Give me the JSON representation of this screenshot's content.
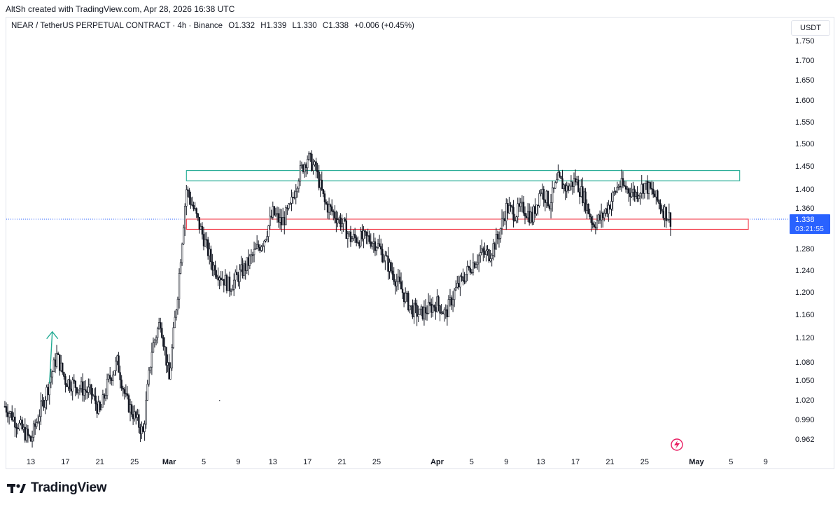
{
  "header": {
    "credit": "AltSh created with TradingView.com, Apr 28, 2026 16:38 UTC",
    "symbol": "NEAR / TetherUS PERPETUAL CONTRACT · 4h · Binance",
    "open": "O1.332",
    "high": "H1.339",
    "low": "L1.330",
    "close": "C1.338",
    "change": "+0.006 (+0.45%)",
    "currency": "USDT"
  },
  "footer": {
    "brand": "TradingView",
    "logo_icon": "tradingview-logo-icon"
  },
  "colors": {
    "candle": "#131722",
    "resistance": "#22ab94",
    "support": "#f23645",
    "price_tag": "#2962ff"
  },
  "chart_data": {
    "type": "candlestick",
    "title": "",
    "xlabel": "",
    "ylabel": "",
    "y_axis_ticks": [
      "1.750",
      "1.700",
      "1.650",
      "1.600",
      "1.550",
      "1.500",
      "1.450",
      "1.400",
      "1.360",
      "1.320",
      "1.280",
      "1.240",
      "1.200",
      "1.160",
      "1.120",
      "1.080",
      "1.050",
      "1.020",
      "0.990",
      "0.962"
    ],
    "x_axis_ticks": [
      {
        "label": "13",
        "bold": false
      },
      {
        "label": "17",
        "bold": false
      },
      {
        "label": "21",
        "bold": false
      },
      {
        "label": "25",
        "bold": false
      },
      {
        "label": "Mar",
        "bold": true
      },
      {
        "label": "5",
        "bold": false
      },
      {
        "label": "9",
        "bold": false
      },
      {
        "label": "13",
        "bold": false
      },
      {
        "label": "17",
        "bold": false
      },
      {
        "label": "21",
        "bold": false
      },
      {
        "label": "25",
        "bold": false
      },
      {
        "label": "Apr",
        "bold": true
      },
      {
        "label": "5",
        "bold": false
      },
      {
        "label": "9",
        "bold": false
      },
      {
        "label": "13",
        "bold": false
      },
      {
        "label": "17",
        "bold": false
      },
      {
        "label": "21",
        "bold": false
      },
      {
        "label": "25",
        "bold": false
      },
      {
        "label": "May",
        "bold": true
      },
      {
        "label": "5",
        "bold": false
      },
      {
        "label": "9",
        "bold": false
      }
    ],
    "last_price": "1.338",
    "countdown": "03:21:55",
    "zones": [
      {
        "type": "resistance",
        "low": 1.418,
        "high": 1.44,
        "from": "Mar 3",
        "to": "May 6"
      },
      {
        "type": "support",
        "low": 1.318,
        "high": 1.338,
        "from": "Mar 3",
        "to": "May 7"
      }
    ],
    "price_path": [
      {
        "date": "Feb 10",
        "price": 1.01
      },
      {
        "date": "Feb 12",
        "price": 0.975
      },
      {
        "date": "Feb 13",
        "price": 0.96
      },
      {
        "date": "Feb 15",
        "price": 1.04
      },
      {
        "date": "Feb 16",
        "price": 1.09
      },
      {
        "date": "Feb 17",
        "price": 1.05
      },
      {
        "date": "Feb 20",
        "price": 1.03
      },
      {
        "date": "Feb 21",
        "price": 1.0
      },
      {
        "date": "Feb 22",
        "price": 1.05
      },
      {
        "date": "Feb 23",
        "price": 1.08
      },
      {
        "date": "Feb 24",
        "price": 1.02
      },
      {
        "date": "Feb 26",
        "price": 0.97
      },
      {
        "date": "Feb 27",
        "price": 1.1
      },
      {
        "date": "Feb 28",
        "price": 1.15
      },
      {
        "date": "Mar 1",
        "price": 1.05
      },
      {
        "date": "Mar 2",
        "price": 1.2
      },
      {
        "date": "Mar 3",
        "price": 1.4
      },
      {
        "date": "Mar 4",
        "price": 1.35
      },
      {
        "date": "Mar 5",
        "price": 1.3
      },
      {
        "date": "Mar 6",
        "price": 1.25
      },
      {
        "date": "Mar 8",
        "price": 1.21
      },
      {
        "date": "Mar 10",
        "price": 1.25
      },
      {
        "date": "Mar 12",
        "price": 1.3
      },
      {
        "date": "Mar 13",
        "price": 1.35
      },
      {
        "date": "Mar 14",
        "price": 1.33
      },
      {
        "date": "Mar 15",
        "price": 1.36
      },
      {
        "date": "Mar 16",
        "price": 1.43
      },
      {
        "date": "Mar 17",
        "price": 1.47
      },
      {
        "date": "Mar 18",
        "price": 1.44
      },
      {
        "date": "Mar 19",
        "price": 1.37
      },
      {
        "date": "Mar 21",
        "price": 1.33
      },
      {
        "date": "Mar 22",
        "price": 1.3
      },
      {
        "date": "Mar 24",
        "price": 1.3
      },
      {
        "date": "Mar 25",
        "price": 1.29
      },
      {
        "date": "Mar 27",
        "price": 1.23
      },
      {
        "date": "Mar 29",
        "price": 1.17
      },
      {
        "date": "Mar 30",
        "price": 1.16
      },
      {
        "date": "Apr 1",
        "price": 1.18
      },
      {
        "date": "Apr 2",
        "price": 1.16
      },
      {
        "date": "Apr 3",
        "price": 1.2
      },
      {
        "date": "Apr 5",
        "price": 1.25
      },
      {
        "date": "Apr 6",
        "price": 1.27
      },
      {
        "date": "Apr 7",
        "price": 1.27
      },
      {
        "date": "Apr 8",
        "price": 1.3
      },
      {
        "date": "Apr 9",
        "price": 1.36
      },
      {
        "date": "Apr 10",
        "price": 1.35
      },
      {
        "date": "Apr 11",
        "price": 1.36
      },
      {
        "date": "Apr 12",
        "price": 1.34
      },
      {
        "date": "Apr 13",
        "price": 1.4
      },
      {
        "date": "Apr 14",
        "price": 1.37
      },
      {
        "date": "Apr 15",
        "price": 1.42
      },
      {
        "date": "Apr 16",
        "price": 1.4
      },
      {
        "date": "Apr 17",
        "price": 1.42
      },
      {
        "date": "Apr 18",
        "price": 1.38
      },
      {
        "date": "Apr 19",
        "price": 1.33
      },
      {
        "date": "Apr 20",
        "price": 1.34
      },
      {
        "date": "Apr 21",
        "price": 1.37
      },
      {
        "date": "Apr 22",
        "price": 1.41
      },
      {
        "date": "Apr 23",
        "price": 1.4
      },
      {
        "date": "Apr 24",
        "price": 1.39
      },
      {
        "date": "Apr 25",
        "price": 1.41
      },
      {
        "date": "Apr 26",
        "price": 1.39
      },
      {
        "date": "Apr 27",
        "price": 1.36
      },
      {
        "date": "Apr 28",
        "price": 1.338
      }
    ]
  }
}
